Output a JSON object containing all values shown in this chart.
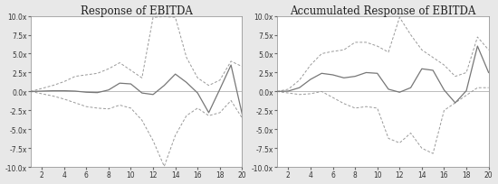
{
  "title1": "Response of EBITDA",
  "title2": "Accumulated Response of EBITDA",
  "x": [
    1,
    2,
    3,
    4,
    5,
    6,
    7,
    8,
    9,
    10,
    11,
    12,
    13,
    14,
    15,
    16,
    17,
    18,
    19,
    20
  ],
  "panel1_center": [
    0.0,
    0.05,
    0.1,
    0.1,
    0.05,
    -0.1,
    -0.15,
    0.2,
    1.1,
    1.0,
    -0.2,
    -0.4,
    0.8,
    2.3,
    1.2,
    -0.2,
    -2.8,
    0.3,
    3.5,
    -3.0
  ],
  "panel1_upper": [
    0.0,
    0.4,
    0.8,
    1.3,
    2.0,
    2.2,
    2.4,
    3.0,
    3.8,
    2.8,
    1.8,
    9.8,
    9.9,
    9.8,
    4.5,
    1.8,
    0.8,
    1.5,
    4.0,
    3.3
  ],
  "panel1_lower": [
    0.0,
    -0.3,
    -0.6,
    -1.0,
    -1.5,
    -2.0,
    -2.2,
    -2.3,
    -1.8,
    -2.2,
    -3.8,
    -6.5,
    -9.9,
    -5.8,
    -3.2,
    -2.2,
    -3.2,
    -2.8,
    -1.2,
    -3.5
  ],
  "panel2_center": [
    0.0,
    0.05,
    0.5,
    1.6,
    2.4,
    2.2,
    1.8,
    2.0,
    2.5,
    2.4,
    0.3,
    -0.1,
    0.5,
    3.0,
    2.8,
    0.2,
    -1.5,
    0.1,
    6.0,
    2.5
  ],
  "panel2_upper": [
    0.0,
    0.3,
    1.5,
    3.5,
    5.0,
    5.3,
    5.5,
    6.5,
    6.5,
    6.0,
    5.2,
    9.8,
    7.5,
    5.5,
    4.5,
    3.5,
    2.0,
    2.5,
    7.2,
    5.5
  ],
  "panel2_lower": [
    0.0,
    -0.2,
    -0.4,
    -0.3,
    0.0,
    -0.8,
    -1.6,
    -2.2,
    -2.0,
    -2.2,
    -6.2,
    -6.8,
    -5.5,
    -7.5,
    -8.2,
    -2.5,
    -1.5,
    -0.5,
    0.5,
    0.5
  ],
  "ylim": [
    -10.0,
    10.0
  ],
  "yticks": [
    -10.0,
    -7.5,
    -5.0,
    -2.5,
    0.0,
    2.5,
    5.0,
    7.5,
    10.0
  ],
  "xticks": [
    2,
    4,
    6,
    8,
    10,
    12,
    14,
    16,
    18,
    20
  ],
  "line_color": "#777777",
  "band_color": "#999999",
  "zero_line_color": "#bbbbbb",
  "title_fontsize": 8.5,
  "tick_fontsize": 5.5,
  "bg_color": "#ffffff",
  "fig_bg_color": "#e8e8e8"
}
